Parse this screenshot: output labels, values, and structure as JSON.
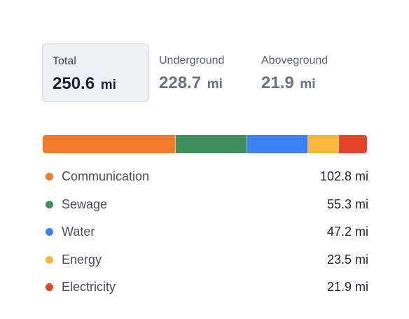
{
  "tabs": [
    {
      "label": "Total",
      "value": "250.6",
      "unit": "mi"
    },
    {
      "label": "Underground",
      "value": "228.7",
      "unit": "mi"
    },
    {
      "label": "Aboveground",
      "value": "21.9",
      "unit": "mi"
    }
  ],
  "categories": [
    {
      "name": "Communication",
      "value_text": "102.8 mi",
      "value": 102.8,
      "color": "#f47b2a"
    },
    {
      "name": "Sewage",
      "value_text": "55.3 mi",
      "value": 55.3,
      "color": "#3f8f5d"
    },
    {
      "name": "Water",
      "value_text": "47.2 mi",
      "value": 47.2,
      "color": "#3b82f6"
    },
    {
      "name": "Energy",
      "value_text": "23.5 mi",
      "value": 23.5,
      "color": "#f6b93b"
    },
    {
      "name": "Electricity",
      "value_text": "21.9 mi",
      "value": 21.9,
      "color": "#e2452a"
    }
  ]
}
